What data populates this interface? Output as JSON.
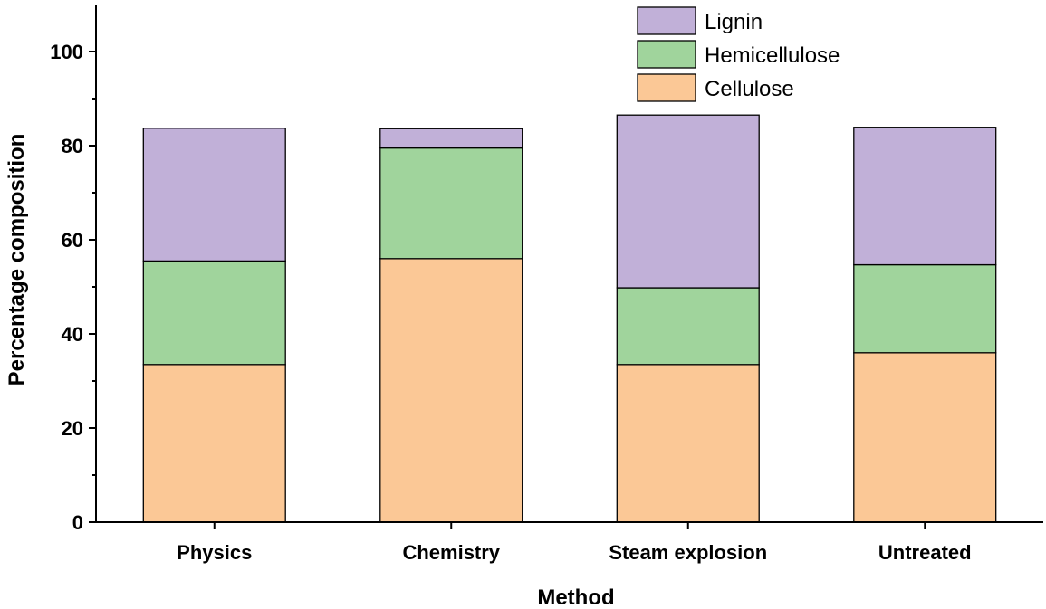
{
  "chart_data": {
    "type": "bar",
    "stacked": true,
    "title": "",
    "xlabel": "Method",
    "ylabel": "Percentage composition",
    "ylim": [
      0,
      110
    ],
    "yticks": [
      0,
      20,
      40,
      60,
      80,
      100
    ],
    "categories": [
      "Physics",
      "Chemistry",
      "Steam explosion",
      "Untreated"
    ],
    "series": [
      {
        "name": "Cellulose",
        "color": "#fbc896",
        "values": [
          33.5,
          56.0,
          33.5,
          36.0
        ]
      },
      {
        "name": "Hemicellulose",
        "color": "#a0d49c",
        "values": [
          22.0,
          23.5,
          16.3,
          18.7
        ]
      },
      {
        "name": "Lignin",
        "color": "#c1b0d8",
        "values": [
          28.2,
          4.1,
          36.7,
          29.2
        ]
      }
    ],
    "legend_order": [
      "Lignin",
      "Hemicellulose",
      "Cellulose"
    ],
    "legend_position": "top-right"
  }
}
